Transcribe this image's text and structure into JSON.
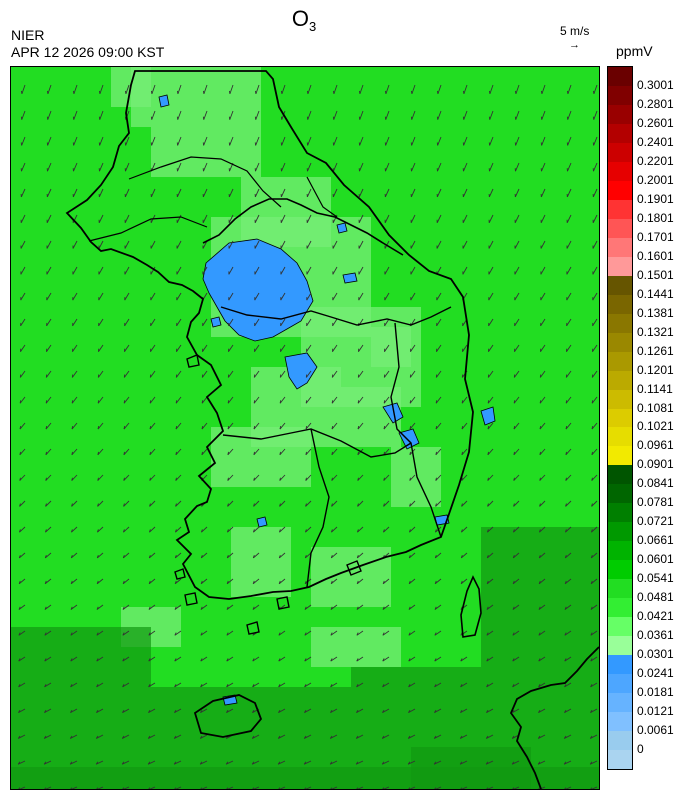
{
  "header": {
    "title_main": "O",
    "title_sub": "3",
    "agency": "NIER",
    "datetime": "APR 12 2026 09:00 KST",
    "vector_label": "5 m/s",
    "vector_arrow": "→",
    "unit": "ppmV"
  },
  "colorbar": {
    "labels": [
      "0.3001",
      "0.2801",
      "0.2601",
      "0.2401",
      "0.2201",
      "0.2001",
      "0.1901",
      "0.1801",
      "0.1701",
      "0.1601",
      "0.1501",
      "0.1441",
      "0.1381",
      "0.1321",
      "0.1261",
      "0.1201",
      "0.1141",
      "0.1081",
      "0.1021",
      "0.0961",
      "0.0901",
      "0.0841",
      "0.0781",
      "0.0721",
      "0.0661",
      "0.0601",
      "0.0541",
      "0.0481",
      "0.0421",
      "0.0361",
      "0.0301",
      "0.0241",
      "0.0181",
      "0.0121",
      "0.0061",
      "0"
    ],
    "colors": [
      "#6a0000",
      "#800000",
      "#990000",
      "#b30000",
      "#cc0000",
      "#e60000",
      "#ff0000",
      "#ff3333",
      "#ff5555",
      "#ff7777",
      "#ff9999",
      "#665500",
      "#7a6600",
      "#8a7700",
      "#9a8800",
      "#aa9900",
      "#bbaa00",
      "#ccbb00",
      "#dccc00",
      "#e6dd00",
      "#f2ea00",
      "#005500",
      "#006600",
      "#007f00",
      "#009900",
      "#00b300",
      "#00cc00",
      "#22dd22",
      "#33ee33",
      "#66ff66",
      "#99ff99",
      "#3399ff",
      "#4da6ff",
      "#66b3ff",
      "#80c0ff",
      "#99ccee",
      "#aad4f0"
    ]
  },
  "map": {
    "background_color": "#22dd22",
    "high_color": "#3399ff",
    "light_color": "#77ee77",
    "dark_color": "#119911",
    "outline_color": "#000000"
  }
}
